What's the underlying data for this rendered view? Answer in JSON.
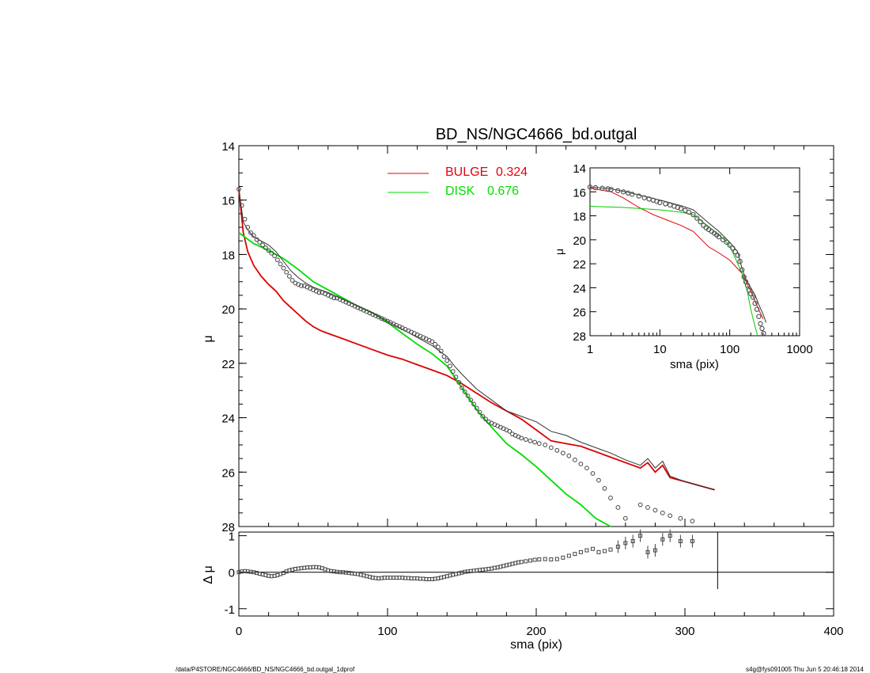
{
  "title": "BD_NS/NGC4666_bd.outgal",
  "footer_left": "/data/P4STORE/NGC4666/BD_NS/NGC4666_bd.outgal_1dprof",
  "footer_right": "s4g@fys091005  Thu Jun  5 20:46:18 2014",
  "chart_data": [
    {
      "type": "line",
      "panel": "main",
      "xlabel": "sma (pix)",
      "ylabel": "μ",
      "xlim": [
        0,
        400
      ],
      "ylim": [
        28,
        14
      ],
      "x_ticks": [
        "0",
        "100",
        "200",
        "300",
        "400"
      ],
      "y_ticks": [
        "14",
        "16",
        "18",
        "20",
        "22",
        "24",
        "26",
        "28"
      ],
      "legend": [
        {
          "label": "BULGE",
          "value": "0.324",
          "color": "#e8000b"
        },
        {
          "label": "DISK",
          "value": "0.676",
          "color": "#00e000"
        }
      ],
      "series": [
        {
          "name": "BULGE",
          "color": "#dd0000",
          "x": [
            0,
            3,
            6,
            10,
            15,
            20,
            25,
            30,
            35,
            40,
            45,
            50,
            55,
            60,
            70,
            80,
            90,
            100,
            110,
            120,
            130,
            140,
            150,
            160,
            170,
            180,
            190,
            200,
            210,
            220,
            230,
            240,
            250,
            260,
            270,
            275,
            280,
            285,
            290,
            300,
            310,
            320
          ],
          "y": [
            15.6,
            17.2,
            17.9,
            18.4,
            18.8,
            19.1,
            19.35,
            19.7,
            19.95,
            20.2,
            20.45,
            20.65,
            20.8,
            20.9,
            21.1,
            21.3,
            21.5,
            21.7,
            21.85,
            22.05,
            22.25,
            22.45,
            22.75,
            23.1,
            23.45,
            23.75,
            24.05,
            24.45,
            24.85,
            24.95,
            25.05,
            25.25,
            25.45,
            25.65,
            25.85,
            25.65,
            26.0,
            25.75,
            26.2,
            26.35,
            26.5,
            26.65
          ]
        },
        {
          "name": "DISK",
          "color": "#00dd00",
          "x": [
            0,
            10,
            20,
            30,
            40,
            50,
            60,
            70,
            80,
            90,
            100,
            110,
            120,
            130,
            140,
            150,
            160,
            170,
            180,
            190,
            200,
            210,
            220,
            230,
            240,
            250
          ],
          "y": [
            17.2,
            17.6,
            17.85,
            18.15,
            18.55,
            19.0,
            19.3,
            19.6,
            19.9,
            20.15,
            20.5,
            20.9,
            21.3,
            21.65,
            22.1,
            22.9,
            23.7,
            24.35,
            24.95,
            25.35,
            25.8,
            26.3,
            26.8,
            27.2,
            27.7,
            28.1
          ]
        },
        {
          "name": "total",
          "color": "#333333",
          "x": [
            0,
            3,
            6,
            10,
            15,
            20,
            25,
            30,
            35,
            40,
            45,
            50,
            55,
            60,
            70,
            80,
            90,
            100,
            110,
            120,
            130,
            140,
            145,
            150,
            160,
            170,
            180,
            190,
            200,
            210,
            220,
            230,
            240,
            250,
            260,
            270,
            275,
            280,
            285,
            290,
            300,
            310,
            320
          ],
          "y": [
            15.6,
            16.8,
            17.1,
            17.35,
            17.5,
            17.65,
            17.9,
            18.25,
            18.6,
            18.85,
            19.05,
            19.2,
            19.3,
            19.4,
            19.65,
            19.9,
            20.15,
            20.45,
            20.75,
            21.05,
            21.35,
            21.75,
            22.1,
            22.4,
            22.95,
            23.35,
            23.75,
            23.95,
            24.15,
            24.5,
            24.65,
            24.9,
            25.1,
            25.3,
            25.55,
            25.75,
            25.5,
            25.85,
            25.6,
            26.15,
            26.35,
            26.5,
            26.65
          ]
        }
      ],
      "points": {
        "name": "data",
        "x": [
          0,
          2,
          4,
          6,
          8,
          10,
          12,
          14,
          16,
          18,
          20,
          22,
          24,
          26,
          28,
          30,
          32,
          34,
          36,
          38,
          40,
          42,
          44,
          46,
          48,
          50,
          52,
          54,
          56,
          58,
          60,
          62,
          64,
          66,
          68,
          70,
          72,
          74,
          76,
          78,
          80,
          82,
          84,
          86,
          88,
          90,
          92,
          94,
          96,
          98,
          100,
          102,
          104,
          106,
          108,
          110,
          112,
          114,
          116,
          118,
          120,
          122,
          124,
          126,
          128,
          130,
          132,
          134,
          136,
          138,
          140,
          142,
          144,
          146,
          148,
          150,
          152,
          154,
          156,
          158,
          160,
          162,
          164,
          166,
          168,
          170,
          172,
          174,
          176,
          178,
          180,
          182,
          184,
          186,
          188,
          190,
          193,
          196,
          199,
          202,
          206,
          210,
          214,
          218,
          222,
          226,
          230,
          234,
          238,
          242,
          246,
          250,
          255,
          260,
          265,
          270,
          275,
          280,
          285,
          290,
          297,
          305
        ],
        "y": [
          15.6,
          16.2,
          16.7,
          17.0,
          17.2,
          17.3,
          17.45,
          17.55,
          17.65,
          17.75,
          17.85,
          17.95,
          18.05,
          18.2,
          18.35,
          18.5,
          18.65,
          18.8,
          18.95,
          19.05,
          19.1,
          19.15,
          19.15,
          19.2,
          19.25,
          19.3,
          19.35,
          19.4,
          19.4,
          19.45,
          19.5,
          19.55,
          19.6,
          19.6,
          19.65,
          19.7,
          19.75,
          19.8,
          19.85,
          19.9,
          19.95,
          20.0,
          20.05,
          20.1,
          20.15,
          20.2,
          20.25,
          20.3,
          20.35,
          20.4,
          20.45,
          20.5,
          20.55,
          20.6,
          20.65,
          20.7,
          20.75,
          20.8,
          20.85,
          20.9,
          20.95,
          21.0,
          21.05,
          21.1,
          21.15,
          21.2,
          21.3,
          21.4,
          21.55,
          21.75,
          21.9,
          22.1,
          22.3,
          22.5,
          22.7,
          22.9,
          23.05,
          23.2,
          23.35,
          23.5,
          23.65,
          23.8,
          23.95,
          24.05,
          24.15,
          24.2,
          24.25,
          24.3,
          24.35,
          24.4,
          24.45,
          24.5,
          24.6,
          24.65,
          24.7,
          24.75,
          24.8,
          24.85,
          24.9,
          24.95,
          25.0,
          25.1,
          25.2,
          25.3,
          25.4,
          25.55,
          25.7,
          25.85,
          26.05,
          26.3,
          26.6,
          26.95,
          27.3,
          27.7,
          28.05,
          27.2,
          27.3,
          27.4,
          27.5,
          27.6,
          27.7,
          27.8
        ]
      }
    },
    {
      "type": "scatter",
      "panel": "residual",
      "xlabel": "sma (pix)",
      "ylabel": "Δ μ",
      "xlim": [
        0,
        400
      ],
      "ylim": [
        -1.2,
        1.1
      ],
      "y_ticks": [
        "1",
        "0",
        "-1"
      ],
      "points": {
        "x": [
          0,
          2,
          4,
          6,
          8,
          10,
          12,
          14,
          16,
          18,
          20,
          22,
          24,
          26,
          28,
          30,
          32,
          34,
          36,
          38,
          40,
          42,
          44,
          46,
          48,
          50,
          52,
          54,
          56,
          58,
          60,
          62,
          64,
          66,
          68,
          70,
          72,
          74,
          76,
          78,
          80,
          82,
          84,
          86,
          88,
          90,
          92,
          94,
          96,
          98,
          100,
          102,
          104,
          106,
          108,
          110,
          112,
          114,
          116,
          118,
          120,
          122,
          124,
          126,
          128,
          130,
          132,
          134,
          136,
          138,
          140,
          142,
          144,
          146,
          148,
          150,
          152,
          154,
          156,
          158,
          160,
          162,
          164,
          166,
          168,
          170,
          172,
          174,
          176,
          178,
          180,
          182,
          184,
          186,
          188,
          190,
          193,
          196,
          199,
          202,
          206,
          210,
          214,
          218,
          222,
          226,
          230,
          234,
          238,
          242,
          246,
          250,
          255,
          260,
          265,
          270,
          275,
          280,
          285,
          290,
          297,
          305
        ],
        "y": [
          0.0,
          0.02,
          0.03,
          0.02,
          0.01,
          0.0,
          -0.02,
          -0.04,
          -0.06,
          -0.08,
          -0.1,
          -0.11,
          -0.1,
          -0.08,
          -0.05,
          -0.02,
          0.02,
          0.05,
          0.07,
          0.09,
          0.1,
          0.11,
          0.12,
          0.13,
          0.13,
          0.14,
          0.14,
          0.13,
          0.11,
          0.08,
          0.05,
          0.03,
          0.02,
          0.01,
          0.0,
          0.0,
          -0.01,
          -0.02,
          -0.03,
          -0.04,
          -0.05,
          -0.07,
          -0.09,
          -0.11,
          -0.13,
          -0.15,
          -0.16,
          -0.17,
          -0.16,
          -0.15,
          -0.15,
          -0.15,
          -0.15,
          -0.15,
          -0.15,
          -0.15,
          -0.16,
          -0.16,
          -0.17,
          -0.17,
          -0.17,
          -0.18,
          -0.18,
          -0.19,
          -0.19,
          -0.19,
          -0.18,
          -0.17,
          -0.15,
          -0.13,
          -0.11,
          -0.09,
          -0.07,
          -0.05,
          -0.03,
          -0.01,
          0.01,
          0.02,
          0.03,
          0.04,
          0.05,
          0.06,
          0.07,
          0.08,
          0.09,
          0.1,
          0.12,
          0.13,
          0.15,
          0.17,
          0.19,
          0.21,
          0.23,
          0.25,
          0.27,
          0.28,
          0.3,
          0.32,
          0.34,
          0.35,
          0.36,
          0.35,
          0.36,
          0.4,
          0.45,
          0.5,
          0.55,
          0.6,
          0.64,
          0.55,
          0.58,
          0.62,
          0.7,
          0.8,
          0.85,
          1.0,
          0.55,
          0.6,
          0.9,
          1.0,
          0.85,
          0.85
        ]
      }
    },
    {
      "type": "line",
      "panel": "inset",
      "xlabel": "sma (pix)",
      "ylabel": "μ",
      "xscale": "log",
      "xlim": [
        1,
        1000
      ],
      "ylim": [
        28,
        14
      ],
      "x_ticks": [
        "1",
        "10",
        "100",
        "1000"
      ],
      "y_ticks": [
        "14",
        "16",
        "18",
        "20",
        "22",
        "24",
        "26",
        "28"
      ],
      "series": [
        {
          "name": "BULGE",
          "color": "#e00000",
          "x": [
            1,
            2,
            3,
            5,
            8,
            12,
            20,
            30,
            50,
            70,
            100,
            150,
            200,
            250,
            300
          ],
          "y": [
            15.7,
            16.0,
            16.5,
            17.3,
            17.9,
            18.3,
            18.8,
            19.3,
            20.6,
            21.1,
            21.7,
            22.8,
            24.3,
            25.6,
            26.6
          ]
        },
        {
          "name": "DISK",
          "color": "#00cc00",
          "x": [
            1,
            3,
            10,
            20,
            30,
            50,
            80,
            100,
            150,
            180,
            200,
            220,
            250
          ],
          "y": [
            17.2,
            17.3,
            17.5,
            17.7,
            17.9,
            18.9,
            19.9,
            20.5,
            22.8,
            24.4,
            25.8,
            26.8,
            28.1
          ]
        },
        {
          "name": "total",
          "color": "#333333",
          "x": [
            1,
            2,
            3,
            5,
            8,
            12,
            20,
            30,
            50,
            70,
            100,
            130,
            150,
            170,
            200,
            230,
            260,
            300,
            330
          ],
          "y": [
            15.6,
            15.75,
            15.95,
            16.25,
            16.55,
            16.8,
            17.15,
            17.5,
            18.6,
            19.3,
            20.2,
            21.0,
            22.4,
            23.3,
            24.0,
            24.6,
            25.4,
            26.2,
            26.9
          ]
        }
      ],
      "points": {
        "x": [
          1,
          1.2,
          1.5,
          1.8,
          2,
          2.5,
          3,
          3.5,
          4,
          5,
          6,
          7,
          8,
          9,
          10,
          12,
          14,
          16,
          18,
          20,
          23,
          26,
          30,
          34,
          38,
          42,
          46,
          50,
          55,
          60,
          65,
          70,
          80,
          90,
          100,
          110,
          120,
          130,
          140,
          150,
          160,
          170,
          180,
          190,
          200,
          215,
          230,
          245,
          260,
          275,
          290,
          305
        ],
        "y": [
          15.6,
          15.65,
          15.7,
          15.75,
          15.8,
          15.9,
          16.0,
          16.1,
          16.2,
          16.35,
          16.5,
          16.6,
          16.7,
          16.8,
          16.9,
          17.0,
          17.1,
          17.2,
          17.3,
          17.4,
          17.55,
          17.7,
          17.9,
          18.2,
          18.5,
          18.8,
          19.0,
          19.15,
          19.3,
          19.45,
          19.6,
          19.75,
          20.0,
          20.2,
          20.45,
          20.7,
          21.0,
          21.3,
          21.8,
          22.5,
          23.1,
          23.5,
          23.8,
          24.2,
          24.5,
          24.8,
          25.3,
          25.8,
          26.4,
          27.0,
          27.4,
          27.8
        ]
      }
    }
  ]
}
